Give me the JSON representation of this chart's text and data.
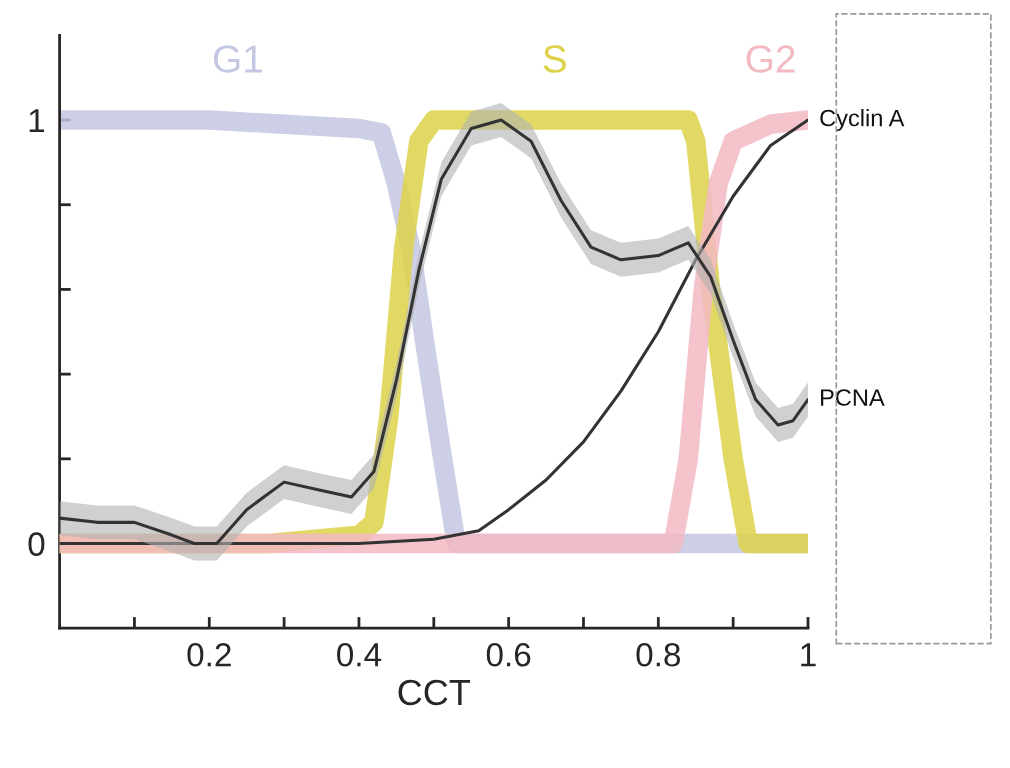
{
  "chart_data": {
    "type": "line",
    "xlabel": "CCT",
    "xlim": [
      0,
      1
    ],
    "ylim": [
      -0.2,
      1.2
    ],
    "xticks": [
      {
        "value": 0.1,
        "label": null
      },
      0.2,
      {
        "value": 0.3,
        "label": null
      },
      0.4,
      {
        "value": 0.5,
        "label": null
      },
      0.6,
      {
        "value": 0.7,
        "label": null
      },
      0.8,
      {
        "value": 0.9,
        "label": null
      },
      1
    ],
    "yticks": [
      0,
      {
        "value": 0.2,
        "label": null
      },
      {
        "value": 0.4,
        "label": null
      },
      {
        "value": 0.6,
        "label": null
      },
      {
        "value": 0.8,
        "label": null
      },
      1
    ],
    "grid": false,
    "legend": false,
    "marker": "none",
    "line_style": "solid",
    "series": [
      {
        "name": "G1",
        "color": "#c3c7e2",
        "x": [
          0,
          0.1,
          0.2,
          0.3,
          0.4,
          0.43,
          0.45,
          0.47,
          0.49,
          0.51,
          0.53,
          0.6,
          0.8,
          1
        ],
        "values": [
          1,
          1,
          1,
          0.99,
          0.98,
          0.97,
          0.85,
          0.69,
          0.45,
          0.22,
          0,
          0,
          0,
          0
        ]
      },
      {
        "name": "S",
        "color": "#ddd24a",
        "x": [
          0,
          0.28,
          0.4,
          0.42,
          0.44,
          0.46,
          0.48,
          0.5,
          0.6,
          0.7,
          0.84,
          0.85,
          0.87,
          0.9,
          0.92,
          1
        ],
        "values": [
          0,
          0,
          0.02,
          0.05,
          0.3,
          0.7,
          0.95,
          1,
          1,
          1,
          1,
          0.95,
          0.6,
          0.2,
          0,
          0
        ]
      },
      {
        "name": "G2",
        "color": "#f2b9c3",
        "x": [
          0,
          0.5,
          0.82,
          0.84,
          0.86,
          0.88,
          0.9,
          0.95,
          1
        ],
        "values": [
          0,
          0,
          0,
          0.2,
          0.6,
          0.85,
          0.95,
          0.99,
          1
        ]
      },
      {
        "name": "Cyclin A",
        "color": "#333333",
        "x": [
          0,
          0.4,
          0.5,
          0.56,
          0.6,
          0.65,
          0.7,
          0.75,
          0.8,
          0.85,
          0.9,
          0.95,
          1
        ],
        "values": [
          0,
          0,
          0.01,
          0.03,
          0.08,
          0.15,
          0.24,
          0.36,
          0.5,
          0.67,
          0.82,
          0.94,
          1
        ]
      },
      {
        "name": "PCNA",
        "color": "#333333",
        "x": [
          0,
          0.05,
          0.1,
          0.15,
          0.18,
          0.21,
          0.25,
          0.3,
          0.35,
          0.39,
          0.42,
          0.45,
          0.48,
          0.51,
          0.55,
          0.59,
          0.63,
          0.67,
          0.71,
          0.75,
          0.8,
          0.84,
          0.87,
          0.9,
          0.93,
          0.96,
          0.98,
          1
        ],
        "values": [
          0.06,
          0.05,
          0.05,
          0.02,
          0,
          0,
          0.08,
          0.145,
          0.125,
          0.11,
          0.17,
          0.385,
          0.645,
          0.86,
          0.98,
          1,
          0.95,
          0.81,
          0.7,
          0.67,
          0.68,
          0.71,
          0.63,
          0.48,
          0.34,
          0.28,
          0.29,
          0.34
        ],
        "lower": [
          0.02,
          0.01,
          0.01,
          -0.02,
          -0.04,
          -0.04,
          0.04,
          0.105,
          0.085,
          0.07,
          0.13,
          0.345,
          0.605,
          0.82,
          0.94,
          0.96,
          0.91,
          0.77,
          0.66,
          0.63,
          0.64,
          0.67,
          0.59,
          0.44,
          0.3,
          0.24,
          0.25,
          0.3
        ],
        "upper": [
          0.1,
          0.09,
          0.09,
          0.06,
          0.04,
          0.04,
          0.12,
          0.185,
          0.165,
          0.15,
          0.21,
          0.425,
          0.685,
          0.9,
          1.02,
          1.04,
          0.99,
          0.85,
          0.74,
          0.71,
          0.72,
          0.75,
          0.67,
          0.52,
          0.38,
          0.32,
          0.33,
          0.38
        ]
      }
    ]
  }
}
